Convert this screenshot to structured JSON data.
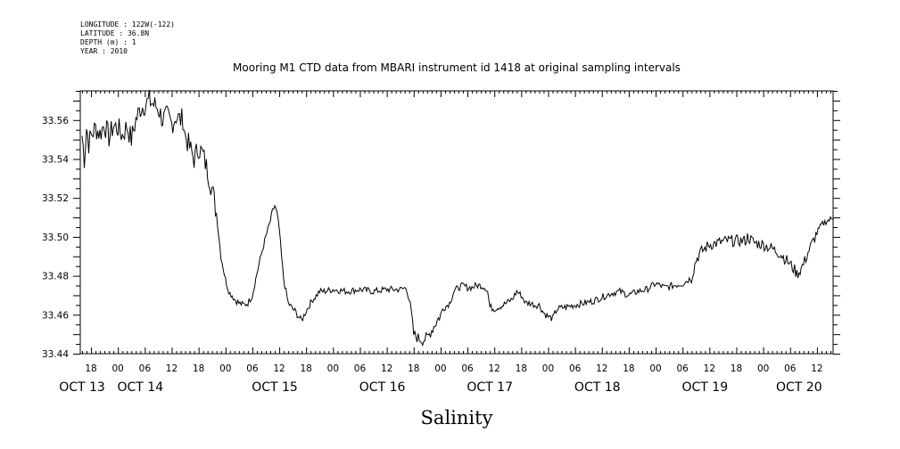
{
  "header": {
    "longitude": "LONGITUDE : 122W(-122)",
    "latitude": "LATITUDE : 36.8N",
    "depth": "DEPTH (m) : 1",
    "year": "YEAR : 2010"
  },
  "chart_data": {
    "type": "line",
    "title": "Mooring M1 CTD data from MBARI instrument id 1418 at original sampling intervals",
    "xlabel": "Salinity",
    "ylabel": "",
    "x_unit": "hours since OCT 13 00:00",
    "xlim": [
      15.6,
      183.6
    ],
    "ylim": [
      33.44,
      33.575
    ],
    "grid": false,
    "y_ticks": [
      33.44,
      33.46,
      33.48,
      33.5,
      33.52,
      33.54,
      33.56
    ],
    "y_tick_labels": [
      "33.44",
      "33.46",
      "33.48",
      "33.50",
      "33.52",
      "33.54",
      "33.56"
    ],
    "hour_ticks": [
      {
        "x": 18,
        "label": "18"
      },
      {
        "x": 24,
        "label": "00"
      },
      {
        "x": 30,
        "label": "06"
      },
      {
        "x": 36,
        "label": "12"
      },
      {
        "x": 42,
        "label": "18"
      },
      {
        "x": 48,
        "label": "00"
      },
      {
        "x": 54,
        "label": "06"
      },
      {
        "x": 60,
        "label": "12"
      },
      {
        "x": 66,
        "label": "18"
      },
      {
        "x": 72,
        "label": "00"
      },
      {
        "x": 78,
        "label": "06"
      },
      {
        "x": 84,
        "label": "12"
      },
      {
        "x": 90,
        "label": "18"
      },
      {
        "x": 96,
        "label": "00"
      },
      {
        "x": 102,
        "label": "06"
      },
      {
        "x": 108,
        "label": "12"
      },
      {
        "x": 114,
        "label": "18"
      },
      {
        "x": 120,
        "label": "00"
      },
      {
        "x": 126,
        "label": "06"
      },
      {
        "x": 132,
        "label": "12"
      },
      {
        "x": 138,
        "label": "18"
      },
      {
        "x": 144,
        "label": "00"
      },
      {
        "x": 150,
        "label": "06"
      },
      {
        "x": 156,
        "label": "12"
      },
      {
        "x": 162,
        "label": "18"
      },
      {
        "x": 168,
        "label": "00"
      },
      {
        "x": 174,
        "label": "06"
      },
      {
        "x": 180,
        "label": "12"
      }
    ],
    "day_labels": [
      {
        "x": 16,
        "label": "OCT 13"
      },
      {
        "x": 29,
        "label": "OCT 14"
      },
      {
        "x": 59,
        "label": "OCT 15"
      },
      {
        "x": 83,
        "label": "OCT 16"
      },
      {
        "x": 107,
        "label": "OCT 17"
      },
      {
        "x": 131,
        "label": "OCT 18"
      },
      {
        "x": 155,
        "label": "OCT 19"
      },
      {
        "x": 176,
        "label": "OCT 20"
      }
    ],
    "series": [
      {
        "x": [
          16.0,
          16.5,
          17.0,
          17.5,
          18.0,
          19.0,
          20.0,
          21.0,
          22.0,
          23.0,
          24.0,
          25.0,
          26.0,
          27.0,
          28.0,
          29.0,
          30.0,
          31.0,
          32.0,
          33.0,
          34.0,
          35.0,
          36.0,
          37.0,
          38.0,
          38.5,
          39.0,
          40.0,
          41.0,
          42.0,
          43.0,
          43.5,
          44.0,
          45.0,
          46.0,
          47.0,
          48.0,
          48.5,
          49.0,
          49.5,
          50.0,
          51.0,
          52.0,
          53.0,
          54.0,
          55.0,
          56.0,
          57.0,
          58.0,
          58.5,
          59.0,
          59.5,
          60.0,
          60.5,
          61.0,
          62.0,
          63.0,
          63.5,
          64.0,
          65.0,
          66.0,
          67.0,
          67.5,
          68.0,
          69.0,
          70.0,
          72.0,
          75.0,
          78.0,
          81.0,
          84.0,
          87.0,
          88.5,
          89.0,
          89.5,
          90.0,
          91.0,
          92.0,
          93.0,
          94.0,
          95.0,
          96.0,
          96.5,
          97.0,
          98.0,
          99.0,
          100.0,
          101.0,
          102.0,
          103.0,
          104.0,
          105.0,
          106.0,
          106.5,
          107.0,
          108.0,
          110.0,
          112.0,
          113.0,
          114.0,
          115.0,
          116.0,
          117.0,
          118.0,
          119.0,
          120.0,
          121.0,
          122.0,
          124.0,
          126.0,
          128.0,
          130.0,
          132.0,
          134.0,
          136.0,
          138.0,
          140.0,
          142.0,
          144.0,
          146.0,
          148.0,
          150.0,
          152.0,
          153.0,
          154.0,
          154.5,
          155.0,
          156.0,
          158.0,
          160.0,
          162.0,
          164.0,
          164.5,
          165.0,
          166.0,
          168.0,
          170.0,
          172.0,
          174.0,
          175.0,
          175.5,
          176.0,
          177.0,
          178.0,
          179.0,
          180.0,
          181.0,
          182.0,
          183.0,
          183.5
        ],
        "y": [
          33.552,
          33.54,
          33.556,
          33.548,
          33.552,
          33.556,
          33.553,
          33.558,
          33.551,
          33.557,
          33.556,
          33.552,
          33.557,
          33.55,
          33.56,
          33.566,
          33.568,
          33.57,
          33.568,
          33.566,
          33.56,
          33.562,
          33.558,
          33.562,
          33.56,
          33.561,
          33.552,
          33.546,
          33.54,
          33.546,
          33.542,
          33.538,
          33.534,
          33.525,
          33.512,
          33.49,
          33.478,
          33.474,
          33.471,
          33.47,
          33.468,
          33.466,
          33.465,
          33.466,
          33.47,
          33.481,
          33.491,
          33.5,
          33.508,
          33.513,
          33.516,
          33.512,
          33.504,
          33.49,
          33.478,
          33.466,
          33.463,
          33.462,
          33.46,
          33.457,
          33.462,
          33.466,
          33.468,
          33.469,
          33.472,
          33.472,
          33.473,
          33.472,
          33.473,
          33.472,
          33.473,
          33.473,
          33.474,
          33.468,
          33.46,
          33.45,
          33.448,
          33.447,
          33.448,
          33.452,
          33.456,
          33.46,
          33.463,
          33.464,
          33.466,
          33.472,
          33.474,
          33.475,
          33.474,
          33.474,
          33.475,
          33.475,
          33.474,
          33.472,
          33.464,
          33.463,
          33.465,
          33.468,
          33.472,
          33.47,
          33.466,
          33.466,
          33.465,
          33.465,
          33.461,
          33.459,
          33.458,
          33.463,
          33.464,
          33.465,
          33.466,
          33.467,
          33.469,
          33.471,
          33.472,
          33.47,
          33.472,
          33.473,
          33.476,
          33.474,
          33.475,
          33.476,
          33.479,
          33.488,
          33.492,
          33.493,
          33.494,
          33.496,
          33.497,
          33.498,
          33.498,
          33.498,
          33.5,
          33.499,
          33.497,
          33.496,
          33.494,
          33.491,
          33.486,
          33.483,
          33.481,
          33.482,
          33.486,
          33.492,
          33.497,
          33.502,
          33.506,
          33.508,
          33.509,
          33.509
        ]
      }
    ]
  }
}
